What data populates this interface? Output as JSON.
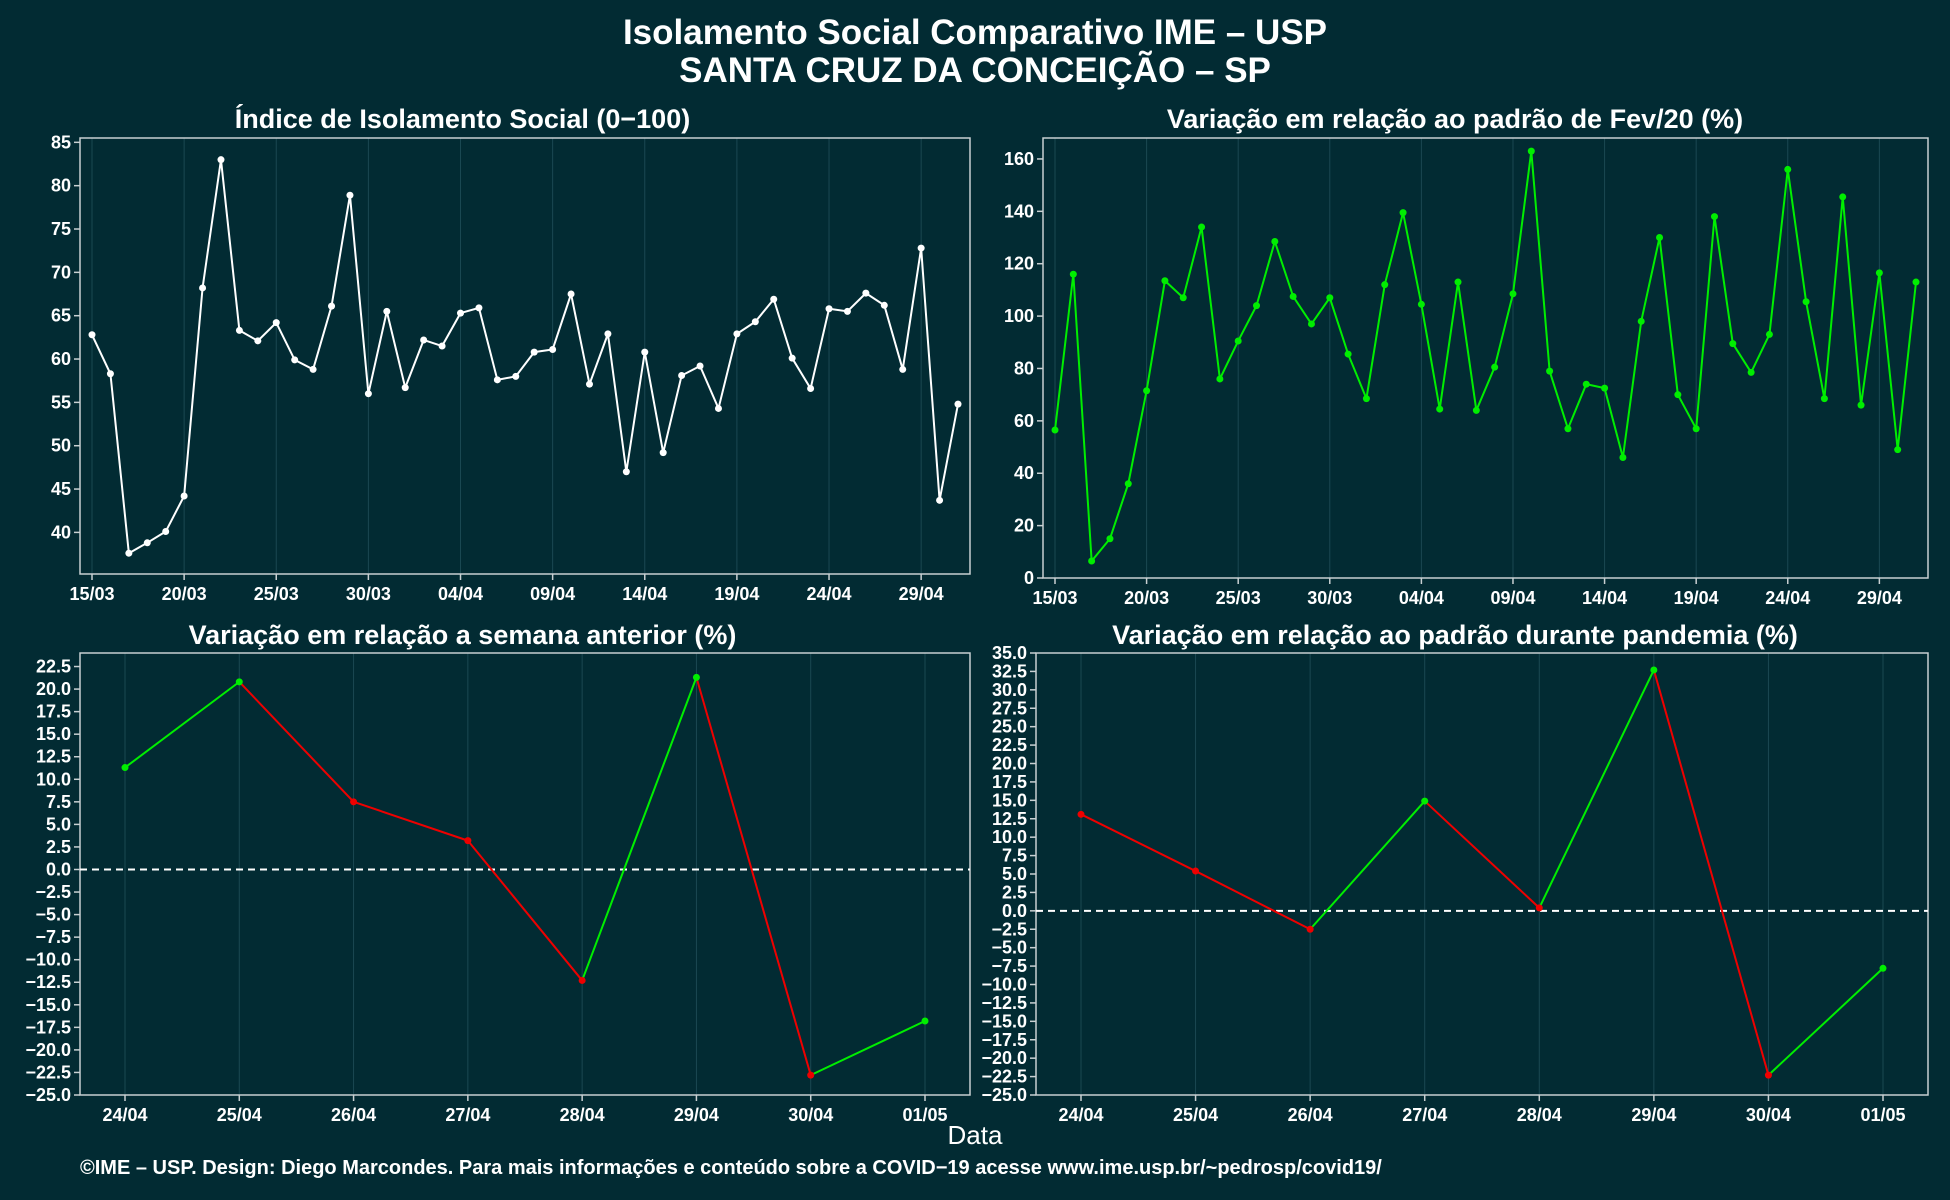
{
  "title_line1": "Isolamento Social Comparativo IME – USP",
  "title_line2": "SANTA CRUZ DA CONCEIÇÃO – SP",
  "x_axis_label": "Data",
  "footer": "©IME – USP. Design: Diego Marcondes. Para mais informações e conteúdo sobre a COVID−19 acesse www.ime.usp.br/~pedrosp/covid19/",
  "colors": {
    "background": "#022b33",
    "white": "#ffffff",
    "green": "#00ee00",
    "red": "#ee0000",
    "frame": "#c8d0d2",
    "grid": "#1b4852"
  },
  "chart_data": [
    {
      "type": "line",
      "title": "Índice de Isolamento Social (0−100)",
      "x": [
        "15/03",
        "16/03",
        "17/03",
        "18/03",
        "19/03",
        "20/03",
        "21/03",
        "22/03",
        "23/03",
        "24/03",
        "25/03",
        "26/03",
        "27/03",
        "28/03",
        "29/03",
        "30/03",
        "31/03",
        "01/04",
        "02/04",
        "03/04",
        "04/04",
        "05/04",
        "06/04",
        "07/04",
        "08/04",
        "09/04",
        "10/04",
        "11/04",
        "12/04",
        "13/04",
        "14/04",
        "15/04",
        "16/04",
        "17/04",
        "18/04",
        "19/04",
        "20/04",
        "21/04",
        "22/04",
        "23/04",
        "24/04",
        "25/04",
        "26/04",
        "27/04",
        "28/04",
        "29/04",
        "30/04",
        "01/05"
      ],
      "x_ticks": [
        "15/03",
        "20/03",
        "25/03",
        "30/03",
        "04/04",
        "09/04",
        "14/04",
        "19/04",
        "24/04",
        "29/04"
      ],
      "series": [
        {
          "color": "#ffffff",
          "values": [
            62.8,
            58.3,
            37.6,
            38.8,
            40.1,
            44.2,
            68.2,
            83.0,
            63.3,
            62.1,
            64.2,
            59.9,
            58.8,
            66.1,
            78.9,
            56.0,
            65.5,
            56.7,
            62.2,
            61.5,
            65.3,
            65.9,
            57.6,
            58.0,
            60.8,
            61.1,
            67.5,
            57.1,
            62.9,
            47.0,
            60.8,
            49.2,
            58.1,
            59.2,
            54.3,
            62.9,
            64.3,
            66.9,
            60.1,
            56.6,
            65.8,
            65.5,
            67.6,
            66.2,
            58.8,
            72.8,
            43.7,
            54.8
          ]
        }
      ],
      "ylim": [
        35.2,
        85.5
      ],
      "y_ticks": [
        40,
        45,
        50,
        55,
        60,
        65,
        70,
        75,
        80,
        85
      ],
      "xlabel": "",
      "ylabel": "",
      "grid": true
    },
    {
      "type": "line",
      "title": "Variação em relação ao padrão de Fev/20 (%)",
      "x": [
        "15/03",
        "16/03",
        "17/03",
        "18/03",
        "19/03",
        "20/03",
        "21/03",
        "22/03",
        "23/03",
        "24/03",
        "25/03",
        "26/03",
        "27/03",
        "28/03",
        "29/03",
        "30/03",
        "31/03",
        "01/04",
        "02/04",
        "03/04",
        "04/04",
        "05/04",
        "06/04",
        "07/04",
        "08/04",
        "09/04",
        "10/04",
        "11/04",
        "12/04",
        "13/04",
        "14/04",
        "15/04",
        "16/04",
        "17/04",
        "18/04",
        "19/04",
        "20/04",
        "21/04",
        "22/04",
        "23/04",
        "24/04",
        "25/04",
        "26/04",
        "27/04",
        "28/04",
        "29/04",
        "30/04",
        "01/05"
      ],
      "x_ticks": [
        "15/03",
        "20/03",
        "25/03",
        "30/03",
        "04/04",
        "09/04",
        "14/04",
        "19/04",
        "24/04",
        "29/04"
      ],
      "series": [
        {
          "color": "#00ee00",
          "values": [
            56.5,
            116.0,
            6.5,
            15.0,
            36.0,
            71.5,
            113.5,
            107.0,
            134.0,
            76.0,
            90.5,
            104.0,
            128.5,
            107.5,
            97.0,
            107.0,
            85.5,
            68.5,
            112.0,
            139.5,
            104.5,
            64.5,
            113.0,
            64.0,
            80.5,
            108.5,
            163.0,
            79.0,
            57.0,
            74.0,
            72.5,
            46.0,
            98.0,
            130.0,
            70.0,
            57.0,
            138.0,
            89.5,
            78.5,
            93.0,
            156.0,
            105.5,
            68.5,
            145.5,
            66.0,
            116.5,
            49.0,
            113.0
          ]
        }
      ],
      "ylim": [
        0,
        168
      ],
      "y_ticks": [
        0,
        20,
        40,
        60,
        80,
        100,
        120,
        140,
        160
      ],
      "xlabel": "",
      "ylabel": "",
      "grid": true
    },
    {
      "type": "line",
      "title": "Variação em relação a semana anterior (%)",
      "categories": [
        "24/04",
        "25/04",
        "26/04",
        "27/04",
        "28/04",
        "29/04",
        "30/04",
        "01/05"
      ],
      "series": [
        {
          "values": [
            11.3,
            20.8,
            7.5,
            3.2,
            -12.3,
            21.3,
            -22.8,
            -16.8
          ]
        }
      ],
      "segment_colors": {
        "increase": "#00ee00",
        "decrease": "#ee0000"
      },
      "reference_line": 0,
      "ylim": [
        -25,
        24
      ],
      "y_ticks": [
        22.5,
        20.0,
        17.5,
        15.0,
        12.5,
        10.0,
        7.5,
        5.0,
        2.5,
        0.0,
        -2.5,
        -5.0,
        -7.5,
        -10.0,
        -12.5,
        -15.0,
        -17.5,
        -20.0,
        -22.5,
        -25.0
      ],
      "xlabel": "",
      "ylabel": "",
      "grid": true
    },
    {
      "type": "line",
      "title": "Variação em relação ao padrão durante pandemia (%)",
      "categories": [
        "24/04",
        "25/04",
        "26/04",
        "27/04",
        "28/04",
        "29/04",
        "30/04",
        "01/05"
      ],
      "series": [
        {
          "values": [
            13.1,
            5.4,
            -2.5,
            14.9,
            0.4,
            32.7,
            -22.3,
            -7.8
          ]
        }
      ],
      "segment_colors": {
        "increase": "#00ee00",
        "decrease": "#ee0000"
      },
      "reference_line": 0,
      "ylim": [
        -25,
        35
      ],
      "y_ticks": [
        35.0,
        32.5,
        30.0,
        27.5,
        25.0,
        22.5,
        20.0,
        17.5,
        15.0,
        12.5,
        10.0,
        7.5,
        5.0,
        2.5,
        0.0,
        -2.5,
        -5.0,
        -7.5,
        -10.0,
        -12.5,
        -15.0,
        -17.5,
        -20.0,
        -22.5,
        -25.0
      ],
      "xlabel": "",
      "ylabel": "",
      "grid": true
    }
  ]
}
